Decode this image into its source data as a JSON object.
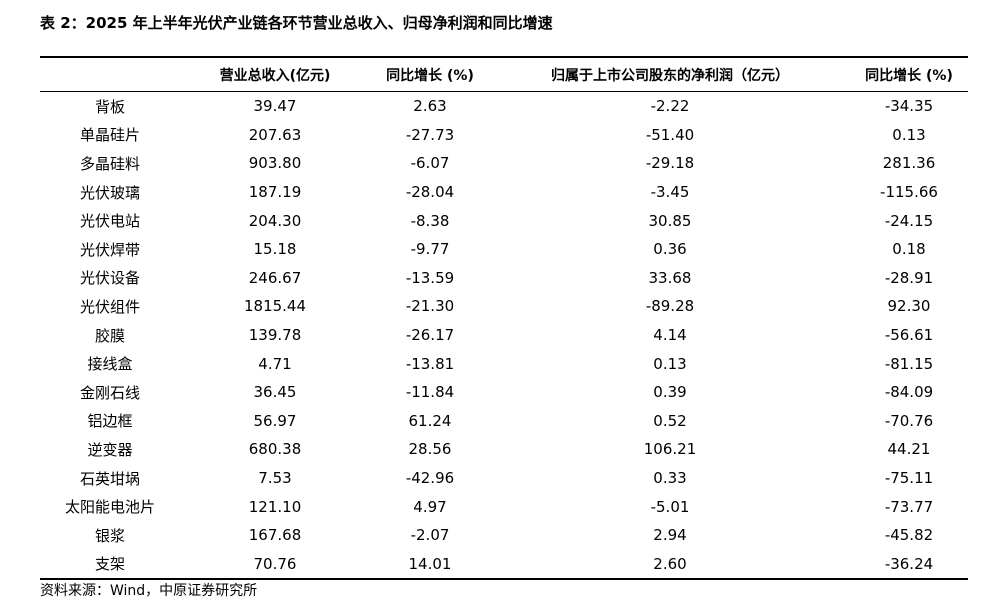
{
  "title": "表 2：2025 年上半年光伏产业链各环节营业总收入、归母净利润和同比增速",
  "table": {
    "header": [
      "",
      "营业总收入(亿元)",
      "同比增长 (%)",
      "归属于上市公司股东的净利润（亿元）",
      "同比增长 (%)"
    ],
    "rows": [
      [
        "背板",
        "39.47",
        "2.63",
        "-2.22",
        "-34.35"
      ],
      [
        "单晶硅片",
        "207.63",
        "-27.73",
        "-51.40",
        "0.13"
      ],
      [
        "多晶硅料",
        "903.80",
        "-6.07",
        "-29.18",
        "281.36"
      ],
      [
        "光伏玻璃",
        "187.19",
        "-28.04",
        "-3.45",
        "-115.66"
      ],
      [
        "光伏电站",
        "204.30",
        "-8.38",
        "30.85",
        "-24.15"
      ],
      [
        "光伏焊带",
        "15.18",
        "-9.77",
        "0.36",
        "0.18"
      ],
      [
        "光伏设备",
        "246.67",
        "-13.59",
        "33.68",
        "-28.91"
      ],
      [
        "光伏组件",
        "1815.44",
        "-21.30",
        "-89.28",
        "92.30"
      ],
      [
        "胶膜",
        "139.78",
        "-26.17",
        "4.14",
        "-56.61"
      ],
      [
        "接线盒",
        "4.71",
        "-13.81",
        "0.13",
        "-81.15"
      ],
      [
        "金刚石线",
        "36.45",
        "-11.84",
        "0.39",
        "-84.09"
      ],
      [
        "铝边框",
        "56.97",
        "61.24",
        "0.52",
        "-70.76"
      ],
      [
        "逆变器",
        "680.38",
        "28.56",
        "106.21",
        "44.21"
      ],
      [
        "石英坩埚",
        "7.53",
        "-42.96",
        "0.33",
        "-75.11"
      ],
      [
        "太阳能电池片",
        "121.10",
        "4.97",
        "-5.01",
        "-73.77"
      ],
      [
        "银浆",
        "167.68",
        "-2.07",
        "2.94",
        "-45.82"
      ],
      [
        "支架",
        "70.76",
        "14.01",
        "2.60",
        "-36.24"
      ]
    ]
  },
  "source": "资料来源：Wind，中原证券研究所"
}
